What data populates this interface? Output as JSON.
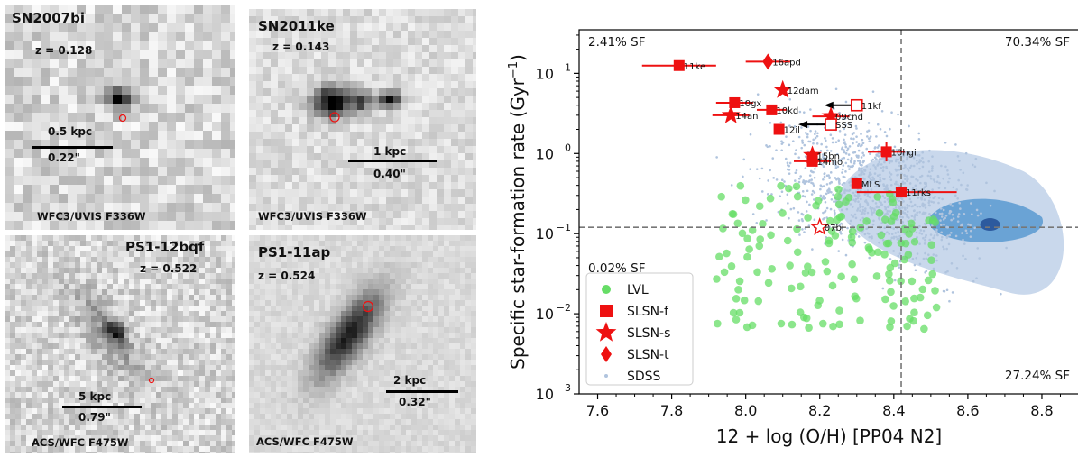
{
  "panels": [
    {
      "name": "SN2007bi",
      "z": "z = 0.128",
      "scale1": "0.5 kpc",
      "scale2": "0.22\"",
      "filter": "WFC3/UVIS F336W"
    },
    {
      "name": "SN2011ke",
      "z": "z = 0.143",
      "scale1": "1 kpc",
      "scale2": "0.40\"",
      "filter": "WFC3/UVIS F336W"
    },
    {
      "name": "PS1-12bqf",
      "z": "z = 0.522",
      "scale1": "5 kpc",
      "scale2": "0.79\"",
      "filter": "ACS/WFC F475W"
    },
    {
      "name": "PS1-11ap",
      "z": "z = 0.524",
      "scale1": "2 kpc",
      "scale2": "0.32\"",
      "filter": "ACS/WFC F475W"
    }
  ],
  "chart_data": {
    "type": "scatter",
    "xlabel": "12 + log (O/H) [PP04 N2]",
    "ylabel": "Specific star-formation rate (Gyr",
    "ylabel_sup": "−1",
    "ylabel_tail": ")",
    "xlim": [
      7.55,
      8.9
    ],
    "ylim": [
      0.001,
      35
    ],
    "yscale": "log",
    "xticks": [
      "7.6",
      "7.8",
      "8.0",
      "8.2",
      "8.4",
      "8.6",
      "8.8"
    ],
    "yticks": [
      {
        "base": "10",
        "exp": "1",
        "value": 10
      },
      {
        "base": "10",
        "exp": "0",
        "value": 1
      },
      {
        "base": "10",
        "exp": "−1",
        "value": 0.1
      },
      {
        "base": "10",
        "exp": "−2",
        "value": 0.01
      },
      {
        "base": "10",
        "exp": "−3",
        "value": 0.001
      }
    ],
    "dividers": {
      "x": 8.42,
      "y": 0.12
    },
    "quadrant_labels": [
      "2.41% SF",
      "70.34% SF",
      "0.02% SF",
      "27.24% SF"
    ],
    "legend": {
      "position": "lower-left",
      "entries": [
        {
          "label": "LVL",
          "marker": "circle",
          "color": "#66dd66"
        },
        {
          "label": "SLSN-f",
          "marker": "square",
          "color": "#ee1111"
        },
        {
          "label": "SLSN-s",
          "marker": "star",
          "color": "#ee1111"
        },
        {
          "label": "SLSN-t",
          "marker": "diamond",
          "color": "#ee1111"
        },
        {
          "label": "SDSS",
          "marker": "dot",
          "color": "#b0c4de"
        }
      ]
    },
    "slsn": [
      {
        "label": "11ke",
        "type": "f",
        "x": 7.82,
        "y": 12.5,
        "xerr": [
          0.1,
          0.1
        ],
        "yerr": [
          0,
          0
        ]
      },
      {
        "label": "16apd",
        "type": "t",
        "x": 8.06,
        "y": 14,
        "xerr": [
          0.06,
          0.06
        ],
        "yerr": [
          0,
          0
        ]
      },
      {
        "label": "12dam",
        "type": "s",
        "x": 8.1,
        "y": 6.2,
        "xerr": [
          0,
          0
        ],
        "yerr": [
          0,
          0
        ]
      },
      {
        "label": "10gx",
        "type": "f",
        "x": 7.97,
        "y": 4.3,
        "xerr": [
          0.05,
          0.05
        ],
        "yerr": [
          0,
          0
        ]
      },
      {
        "label": "11kf",
        "type": "f_open",
        "x": 8.3,
        "y": 4.0,
        "xerr": [
          0,
          0
        ],
        "yerr": [
          0,
          0
        ],
        "upper_limit": true
      },
      {
        "label": "10kd",
        "type": "f",
        "x": 8.07,
        "y": 3.5,
        "xerr": [
          0.04,
          0.04
        ],
        "yerr": [
          0,
          0
        ]
      },
      {
        "label": "14an",
        "type": "s",
        "x": 7.96,
        "y": 3.0,
        "xerr": [
          0.05,
          0.05
        ],
        "yerr": [
          0,
          0
        ]
      },
      {
        "label": "09cnd",
        "type": "s",
        "x": 8.23,
        "y": 2.9,
        "xerr": [
          0.05,
          0.05
        ],
        "yerr": [
          0,
          0
        ]
      },
      {
        "label": "SSS",
        "type": "f_open",
        "x": 8.23,
        "y": 2.3,
        "xerr": [
          0,
          0
        ],
        "yerr": [
          0,
          0
        ],
        "upper_limit": true
      },
      {
        "label": "12il",
        "type": "f",
        "x": 8.09,
        "y": 2.0,
        "xerr": [
          0,
          0
        ],
        "yerr": [
          0,
          0
        ]
      },
      {
        "label": "10hgi",
        "type": "f",
        "x": 8.38,
        "y": 1.05,
        "xerr": [
          0.05,
          0.05
        ],
        "yerr": [
          0.3,
          0.3
        ]
      },
      {
        "label": "15bn",
        "type": "s",
        "x": 8.18,
        "y": 0.95,
        "xerr": [
          0,
          0
        ],
        "yerr": [
          0,
          0
        ]
      },
      {
        "label": "14mo",
        "type": "f",
        "x": 8.18,
        "y": 0.8,
        "xerr": [
          0.05,
          0.05
        ],
        "yerr": [
          0,
          0
        ]
      },
      {
        "label": "MLS",
        "type": "f",
        "x": 8.3,
        "y": 0.42,
        "xerr": [
          0,
          0
        ],
        "yerr": [
          0,
          0
        ]
      },
      {
        "label": "11rks",
        "type": "f",
        "x": 8.42,
        "y": 0.33,
        "xerr": [
          0.12,
          0.15
        ],
        "yerr": [
          0,
          0
        ]
      },
      {
        "label": "07bi",
        "type": "s_open",
        "x": 8.2,
        "y": 0.12,
        "xerr": [
          0,
          0
        ],
        "yerr": [
          0,
          0
        ]
      }
    ]
  }
}
